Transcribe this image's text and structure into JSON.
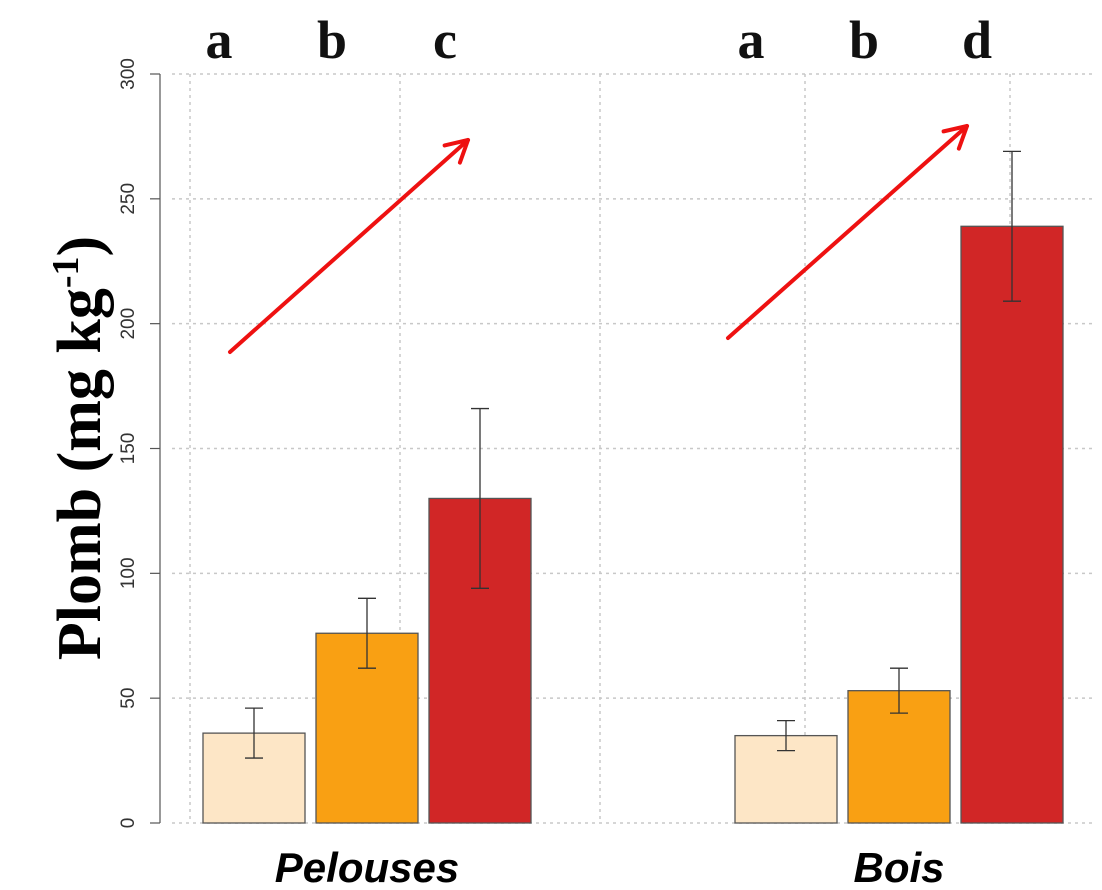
{
  "chart_data": {
    "type": "bar",
    "ylabel": "Plomb (mg kg",
    "ylabel_sup": "-1",
    "ylabel_end": ")",
    "ylim": [
      0,
      300
    ],
    "yticks": [
      0,
      50,
      100,
      150,
      200,
      250,
      300
    ],
    "grid": true,
    "groups": [
      {
        "name": "Pelouses",
        "bars": [
          {
            "value": 36,
            "err_low": 26,
            "err_high": 46,
            "letter": "a",
            "color": "#fde6c6"
          },
          {
            "value": 76,
            "err_low": 62,
            "err_high": 90,
            "letter": "b",
            "color": "#f9a013"
          },
          {
            "value": 130,
            "err_low": 94,
            "err_high": 166,
            "letter": "c",
            "color": "#d12626"
          }
        ]
      },
      {
        "name": "Bois",
        "bars": [
          {
            "value": 35,
            "err_low": 29,
            "err_high": 41,
            "letter": "a",
            "color": "#fde6c6"
          },
          {
            "value": 53,
            "err_low": 44,
            "err_high": 62,
            "letter": "b",
            "color": "#f9a013"
          },
          {
            "value": 239,
            "err_low": 209,
            "err_high": 269,
            "letter": "d",
            "color": "#d12626"
          }
        ]
      }
    ],
    "trend_arrow_color": "#ee1111"
  }
}
